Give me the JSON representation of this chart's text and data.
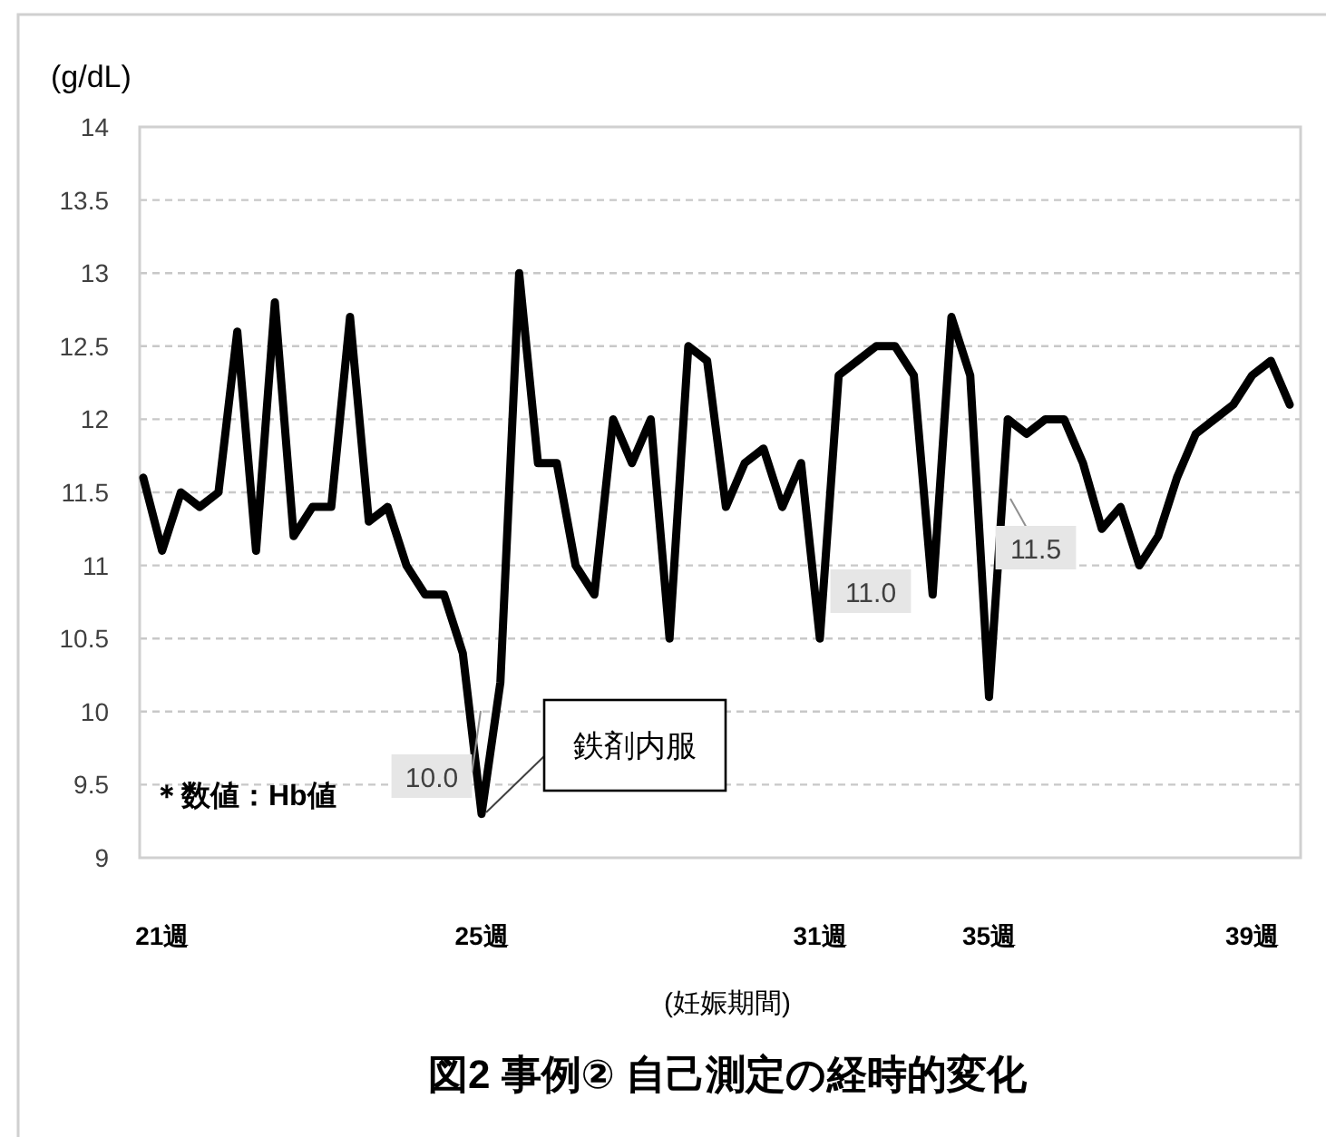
{
  "chart_data": {
    "type": "line",
    "title": "図2 事例② 自己測定の経時的変化",
    "xlabel": "(妊娠期間)",
    "ylabel": "(g/dL)",
    "categories": [
      null,
      "21週",
      null,
      null,
      null,
      null,
      null,
      null,
      null,
      null,
      null,
      null,
      null,
      null,
      null,
      null,
      null,
      null,
      "25週",
      null,
      null,
      null,
      null,
      null,
      null,
      null,
      null,
      null,
      null,
      null,
      null,
      null,
      null,
      null,
      null,
      null,
      "31週",
      null,
      null,
      null,
      null,
      null,
      null,
      null,
      null,
      "35週",
      null,
      null,
      null,
      null,
      null,
      null,
      null,
      null,
      null,
      null,
      null,
      null,
      null,
      "39週",
      null,
      null
    ],
    "series": [
      {
        "color": "#000000",
        "values": [
          11.6,
          11.1,
          11.5,
          11.4,
          11.5,
          12.6,
          11.1,
          12.8,
          11.2,
          11.4,
          11.4,
          12.7,
          11.3,
          11.4,
          11.0,
          10.8,
          10.8,
          10.4,
          9.3,
          10.2,
          13.0,
          11.7,
          11.7,
          11.0,
          10.8,
          12.0,
          11.7,
          12.0,
          10.5,
          12.5,
          12.4,
          11.4,
          11.7,
          11.8,
          11.4,
          11.7,
          10.5,
          12.3,
          12.4,
          12.5,
          12.5,
          12.3,
          10.8,
          12.7,
          12.3,
          10.1,
          12.0,
          11.9,
          12.0,
          12.0,
          11.7,
          11.25,
          11.4,
          11.0,
          11.2,
          11.6,
          11.9,
          12.0,
          12.1,
          12.3,
          12.4,
          12.1
        ]
      }
    ],
    "ylim": [
      9,
      14
    ],
    "yticks": [
      9,
      9.5,
      10,
      10.5,
      11,
      11.5,
      12,
      12.5,
      13,
      13.5,
      14
    ],
    "grid": "y",
    "marker": "none",
    "line_style": "solid",
    "annotations": [
      "＊数値：Hb値",
      "10.0",
      "鉄剤内服",
      "11.0",
      "11.5"
    ]
  }
}
